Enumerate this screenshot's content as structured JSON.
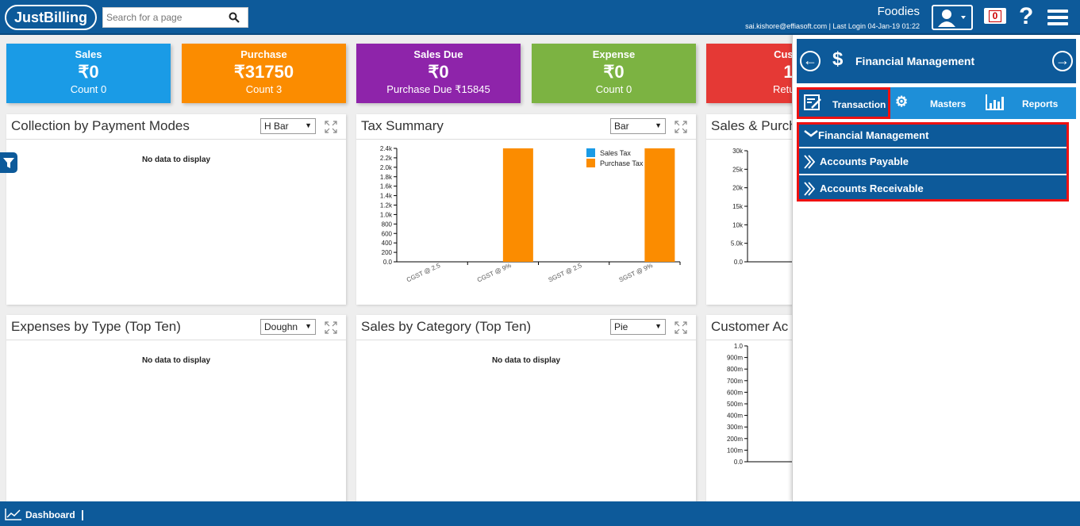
{
  "header": {
    "logo": "JustBilling",
    "search_placeholder": "Search for a page",
    "company": "Foodies",
    "user_info": "sai.kishore@effiasoft.com | Last Login 04-Jan-19 01:22",
    "notification_count": "0",
    "help": "?"
  },
  "cards": [
    {
      "title": "Sales",
      "value": "₹0",
      "sub": "Count 0",
      "color": "#1a9be6"
    },
    {
      "title": "Purchase",
      "value": "₹31750",
      "sub": "Count 3",
      "color": "#fb8c00"
    },
    {
      "title": "Sales Due",
      "value": "₹0",
      "sub": "Purchase Due ₹15845",
      "color": "#8e24aa"
    },
    {
      "title": "Expense",
      "value": "₹0",
      "sub": "Count 0",
      "color": "#7cb342"
    },
    {
      "title": "Custo",
      "value": "1",
      "sub": "Return",
      "color": "#e53935"
    }
  ],
  "panels": {
    "collection": {
      "title": "Collection by Payment Modes",
      "chart_type": "H Bar",
      "empty": "No data to display"
    },
    "tax": {
      "title": "Tax Summary",
      "chart_type": "Bar"
    },
    "sales_purchase": {
      "title": "Sales & Purch"
    },
    "expenses": {
      "title": "Expenses by Type (Top Ten)",
      "chart_type": "Doughn",
      "empty": "No data to display"
    },
    "sales_category": {
      "title": "Sales by Category (Top Ten)",
      "chart_type": "Pie",
      "empty": "No data to display"
    },
    "customer": {
      "title": "Customer Ac"
    }
  },
  "chart_data": [
    {
      "type": "bar",
      "title": "Tax Summary",
      "categories": [
        "CGST @ 2.5",
        "CGST @ 9%",
        "SGST @ 2.5",
        "SGST @ 9%"
      ],
      "series": [
        {
          "name": "Sales Tax",
          "color": "#1a9be6",
          "values": [
            0,
            0,
            0,
            0
          ]
        },
        {
          "name": "Purchase Tax",
          "color": "#fb8c00",
          "values": [
            0,
            2400,
            0,
            2400
          ]
        }
      ],
      "y_ticks": [
        "0.0",
        "200",
        "400",
        "600",
        "800",
        "1.0k",
        "1.2k",
        "1.4k",
        "1.6k",
        "1.8k",
        "2.0k",
        "2.2k",
        "2.4k"
      ],
      "ylim": [
        0,
        2400
      ],
      "legend": "top-right"
    },
    {
      "type": "bar",
      "title": "Sales & Purch",
      "y_ticks": [
        "0.0",
        "5.0k",
        "10k",
        "15k",
        "20k",
        "25k",
        "30k"
      ],
      "ylim": [
        0,
        30000
      ]
    },
    {
      "type": "bar",
      "title": "Customer Ac",
      "y_ticks": [
        "0.0",
        "100m",
        "200m",
        "300m",
        "400m",
        "500m",
        "600m",
        "700m",
        "800m",
        "900m",
        "1.0"
      ],
      "ylim": [
        0,
        1
      ]
    }
  ],
  "sidepanel": {
    "title": "Financial Management",
    "tabs": [
      "Transaction",
      "Masters",
      "Reports"
    ],
    "submenu": [
      "Financial Management",
      "Accounts Payable",
      "Accounts Receivable"
    ]
  },
  "footer": {
    "label": "Dashboard",
    "sep": "|"
  }
}
